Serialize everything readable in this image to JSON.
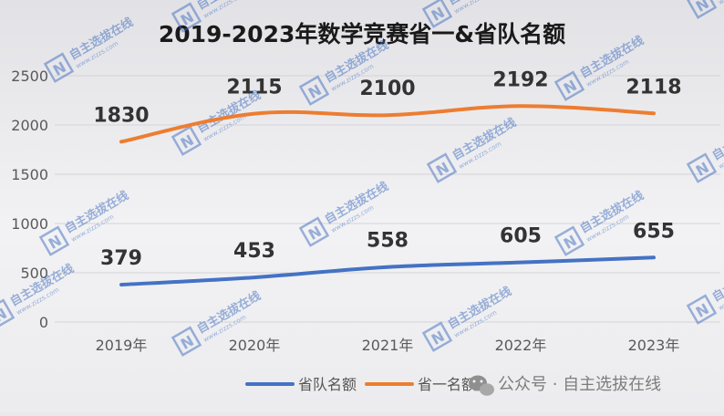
{
  "chart_data": {
    "type": "line",
    "title": "2019-2023年数学竞赛省一&省队名额",
    "categories": [
      "2019年",
      "2020年",
      "2021年",
      "2022年",
      "2023年"
    ],
    "ylim": [
      0,
      2500
    ],
    "yticks": [
      0,
      500,
      1000,
      1500,
      2000,
      2500
    ],
    "grid": true,
    "legend": "bottom-right",
    "series": [
      {
        "name": "省队名额",
        "values": [
          379,
          453,
          558,
          605,
          655
        ],
        "color": "#4472c4"
      },
      {
        "name": "省一名额",
        "values": [
          1830,
          2115,
          2100,
          2192,
          2118
        ],
        "color": "#ed7d31"
      }
    ]
  },
  "overlay": {
    "wechat_caption": "公众号 · 自主选拔在线",
    "watermark_text": "自主选拔在线",
    "watermark_url": "www.zizzs.com",
    "watermark_logo": "N"
  }
}
